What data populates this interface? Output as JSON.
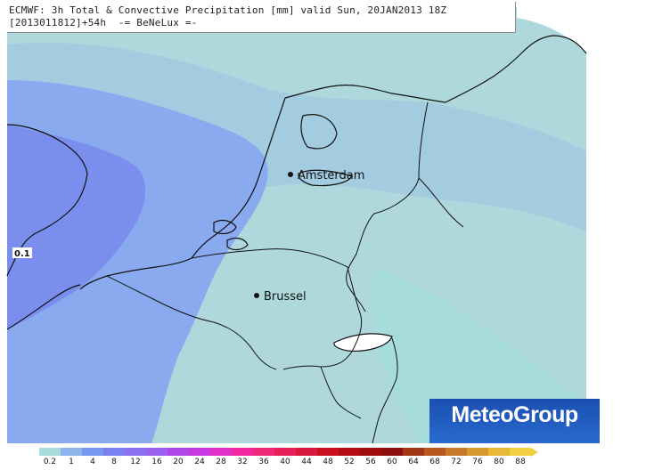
{
  "title": {
    "line1": "ECMWF: 3h Total & Convective Precipitation [mm] valid Sun, 20JAN2013 18Z",
    "line2": "[2013011812]+54h  -= BeNeLux =-"
  },
  "cities": [
    {
      "name": "Amsterdam"
    },
    {
      "name": "Brussel"
    }
  ],
  "field_value_label": "0.1",
  "logo": {
    "text": "MeteoGroup"
  },
  "legend": {
    "labels": [
      "0.2",
      "1",
      "4",
      "8",
      "12",
      "16",
      "20",
      "24",
      "28",
      "32",
      "36",
      "40",
      "44",
      "48",
      "52",
      "56",
      "60",
      "64",
      "68",
      "72",
      "76",
      "80",
      "88"
    ],
    "colors": [
      "#a8dcdc",
      "#8fb4ec",
      "#7898f0",
      "#7a80ee",
      "#8a70f0",
      "#9a60f0",
      "#b048e8",
      "#c838e0",
      "#e030c8",
      "#f028a0",
      "#f02878",
      "#e8205a",
      "#d8183c",
      "#c81020",
      "#b40c14",
      "#a00c10",
      "#8c1010",
      "#a03818",
      "#b85820",
      "#c87828",
      "#d89830",
      "#e8b838",
      "#f0d040"
    ],
    "colors_note": "precipitation scale"
  }
}
